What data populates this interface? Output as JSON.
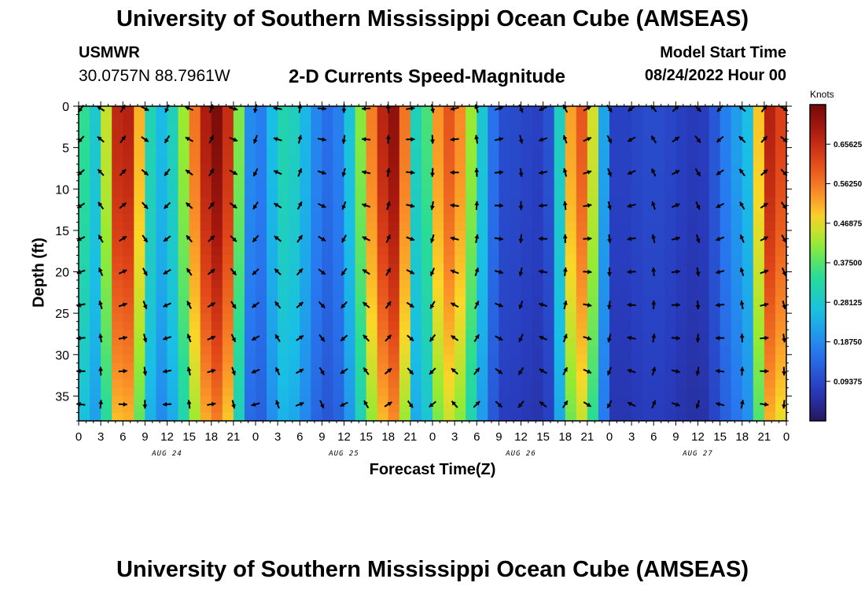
{
  "header": {
    "title": "University of Southern Mississippi Ocean Cube (AMSEAS)",
    "station": "USMWR",
    "coords": "30.0757N  88.7961W",
    "product": "2-D Currents Speed-Magnitude",
    "model_start_label": "Model Start Time",
    "model_start_value": "08/24/2022 Hour 00"
  },
  "footer": {
    "title": "University of Southern Mississippi Ocean Cube (AMSEAS)"
  },
  "colorbar": {
    "units": "Knots",
    "labels": [
      "0.65625",
      "0.56250",
      "0.46875",
      "0.37500",
      "0.28125",
      "0.18750",
      "0.09375"
    ],
    "min": 0.0,
    "max": 0.75
  },
  "chart_data": {
    "type": "heatmap",
    "title": "2-D Currents Speed-Magnitude",
    "xlabel": "Forecast Time(Z)",
    "ylabel": "Depth (ft)",
    "x_ticks": [
      "0",
      "3",
      "6",
      "9",
      "12",
      "15",
      "18",
      "21",
      "0",
      "3",
      "6",
      "9",
      "12",
      "15",
      "18",
      "21",
      "0",
      "3",
      "6",
      "9",
      "12",
      "15",
      "18",
      "21",
      "0",
      "3",
      "6",
      "9",
      "12",
      "15",
      "18",
      "21",
      "0"
    ],
    "day_labels": [
      {
        "label": "AUG 24",
        "hour": 12
      },
      {
        "label": "AUG 25",
        "hour": 36
      },
      {
        "label": "AUG 26",
        "hour": 60
      },
      {
        "label": "AUG 27",
        "hour": 84
      }
    ],
    "xlim": [
      0,
      96
    ],
    "y_ticks": [
      0,
      5,
      10,
      15,
      20,
      25,
      30,
      35
    ],
    "ylim": [
      38,
      0
    ],
    "arrow_hours": [
      0,
      3,
      6,
      9,
      12,
      15,
      18,
      21,
      24,
      27,
      30,
      33,
      36,
      39,
      42,
      45,
      48,
      51,
      54,
      57,
      60,
      63,
      66,
      69,
      72,
      75,
      78,
      81,
      84,
      87,
      90,
      93,
      96
    ],
    "arrow_depths": [
      0,
      4,
      8,
      12,
      16,
      20,
      24,
      28,
      32,
      36
    ],
    "speed_peaks": [
      {
        "hour": 0,
        "speed": 0.38
      },
      {
        "hour": 2,
        "speed": 0.28
      },
      {
        "hour": 6,
        "speed": 0.7
      },
      {
        "hour": 11,
        "speed": 0.25
      },
      {
        "hour": 19,
        "speed": 0.74
      },
      {
        "hour": 24,
        "speed": 0.16
      },
      {
        "hour": 28,
        "speed": 0.32
      },
      {
        "hour": 34,
        "speed": 0.15
      },
      {
        "hour": 43,
        "speed": 0.72
      },
      {
        "hour": 46,
        "speed": 0.3
      },
      {
        "hour": 50,
        "speed": 0.6
      },
      {
        "hour": 58,
        "speed": 0.1
      },
      {
        "hour": 63,
        "speed": 0.08
      },
      {
        "hour": 68,
        "speed": 0.6
      },
      {
        "hour": 73,
        "speed": 0.08
      },
      {
        "hour": 78,
        "speed": 0.1
      },
      {
        "hour": 84,
        "speed": 0.07
      },
      {
        "hour": 90,
        "speed": 0.22
      },
      {
        "hour": 94,
        "speed": 0.68
      },
      {
        "hour": 96,
        "speed": 0.6
      }
    ]
  }
}
